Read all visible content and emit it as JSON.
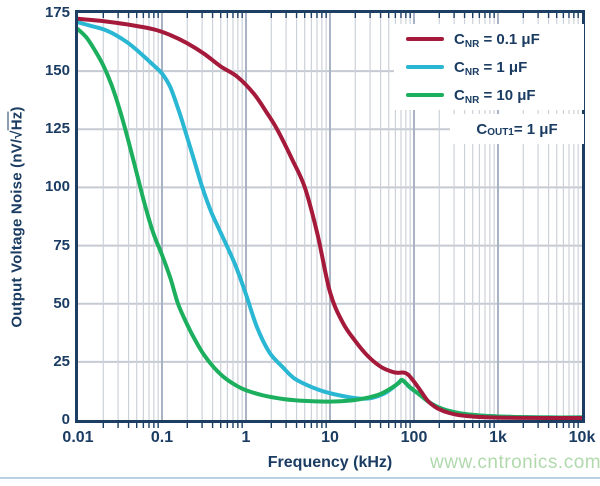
{
  "figure": {
    "watermark": "www.cntronics.com",
    "colors": {
      "axis_frame": "#1c3e63",
      "text": "#1b3c62",
      "grid_major": "#aab3c3",
      "grid_minor": "#cdd1d9",
      "grid_horizontal": "#c6cad3",
      "background": "#ffffff",
      "watermark": "#b1d9ad",
      "bottom_rule": "#b6d0e6"
    }
  },
  "chart_data": {
    "type": "line",
    "title": "",
    "grid": true,
    "legend_position": "top-right",
    "x_axis": {
      "label": "Frequency (kHz)",
      "scale": "log",
      "min_log": -2,
      "max_log": 4,
      "tick_labels": [
        "0.01",
        "0.1",
        "1",
        "10",
        "100",
        "1k",
        "10k"
      ]
    },
    "y_axis": {
      "label_pre": "Output Voltage Noise (nV/√",
      "label_overline": "Hz",
      "label_post": ")",
      "min": 0,
      "max": 175,
      "tick_step": 25,
      "tick_labels": [
        "0",
        "25",
        "50",
        "75",
        "100",
        "125",
        "150",
        "175"
      ]
    },
    "annotation": {
      "pre": "C",
      "sub": "OUT1",
      "rest": " = 1 μF"
    },
    "series": [
      {
        "id": "cnr-0.1uf",
        "label_pre": "C",
        "label_sub": "NR",
        "label_rest": " = 0.1 μF",
        "color": "#a5193a",
        "points_log_kHz_nV": [
          [
            -2,
            172.5
          ],
          [
            -1.7,
            171.5
          ],
          [
            -1.4,
            170
          ],
          [
            -1.1,
            168
          ],
          [
            -0.9,
            165.5
          ],
          [
            -0.7,
            162
          ],
          [
            -0.5,
            157.5
          ],
          [
            -0.3,
            152
          ],
          [
            -0.1,
            147.5
          ],
          [
            0.1,
            140
          ],
          [
            0.25,
            132
          ],
          [
            0.37,
            125
          ],
          [
            0.55,
            112
          ],
          [
            0.7,
            100
          ],
          [
            0.85,
            80
          ],
          [
            1.0,
            55
          ],
          [
            1.15,
            42
          ],
          [
            1.3,
            34
          ],
          [
            1.45,
            27.5
          ],
          [
            1.6,
            23
          ],
          [
            1.72,
            21
          ],
          [
            1.8,
            20.3
          ],
          [
            1.88,
            20.4
          ],
          [
            1.93,
            19.5
          ],
          [
            2.0,
            16.5
          ],
          [
            2.08,
            12.5
          ],
          [
            2.17,
            8
          ],
          [
            2.28,
            5
          ],
          [
            2.42,
            3
          ],
          [
            2.6,
            1.8
          ],
          [
            2.9,
            1.1
          ],
          [
            3.3,
            0.9
          ],
          [
            4,
            0.85
          ]
        ]
      },
      {
        "id": "cnr-1uf",
        "label_pre": "C",
        "label_sub": "NR",
        "label_rest": " = 1 μF",
        "color": "#29b7d3",
        "points_log_kHz_nV": [
          [
            -2,
            171
          ],
          [
            -1.85,
            169.5
          ],
          [
            -1.7,
            168
          ],
          [
            -1.55,
            165.5
          ],
          [
            -1.4,
            162
          ],
          [
            -1.25,
            157.5
          ],
          [
            -1.1,
            152.5
          ],
          [
            -1,
            149
          ],
          [
            -0.9,
            143
          ],
          [
            -0.8,
            133
          ],
          [
            -0.73,
            125
          ],
          [
            -0.62,
            112
          ],
          [
            -0.52,
            100
          ],
          [
            -0.42,
            90
          ],
          [
            -0.32,
            82
          ],
          [
            -0.23,
            75
          ],
          [
            -0.12,
            66
          ],
          [
            0,
            54
          ],
          [
            0.13,
            40
          ],
          [
            0.28,
            29
          ],
          [
            0.43,
            23
          ],
          [
            0.57,
            18
          ],
          [
            0.76,
            14.5
          ],
          [
            0.95,
            12
          ],
          [
            1.15,
            10.3
          ],
          [
            1.35,
            9.2
          ],
          [
            1.5,
            9.5
          ],
          [
            1.65,
            11.5
          ],
          [
            1.78,
            14.8
          ],
          [
            1.86,
            17
          ],
          [
            1.95,
            14
          ],
          [
            2.07,
            10.8
          ],
          [
            2.2,
            7.2
          ],
          [
            2.35,
            4.6
          ],
          [
            2.55,
            2.9
          ],
          [
            2.8,
            1.9
          ],
          [
            3.2,
            1.3
          ],
          [
            3.6,
            1.1
          ],
          [
            4,
            1.1
          ]
        ]
      },
      {
        "id": "cnr-10uf",
        "label_pre": "C",
        "label_sub": "NR",
        "label_rest": " = 10 μF",
        "color": "#1caf5e",
        "points_log_kHz_nV": [
          [
            -2,
            168
          ],
          [
            -1.9,
            164.5
          ],
          [
            -1.8,
            159
          ],
          [
            -1.7,
            152.5
          ],
          [
            -1.6,
            144
          ],
          [
            -1.5,
            133
          ],
          [
            -1.4,
            120
          ],
          [
            -1.3,
            106
          ],
          [
            -1.2,
            92
          ],
          [
            -1.1,
            80
          ],
          [
            -1,
            71
          ],
          [
            -0.9,
            61
          ],
          [
            -0.81,
            50
          ],
          [
            -0.7,
            41
          ],
          [
            -0.6,
            34
          ],
          [
            -0.5,
            28
          ],
          [
            -0.38,
            22.5
          ],
          [
            -0.25,
            18
          ],
          [
            -0.1,
            14.5
          ],
          [
            0,
            12.8
          ],
          [
            0.2,
            10.6
          ],
          [
            0.45,
            9
          ],
          [
            0.7,
            8.2
          ],
          [
            1,
            7.9
          ],
          [
            1.25,
            8.4
          ],
          [
            1.45,
            9.6
          ],
          [
            1.6,
            11.2
          ],
          [
            1.72,
            13.5
          ],
          [
            1.82,
            16
          ],
          [
            1.86,
            17.2
          ],
          [
            1.95,
            14.2
          ],
          [
            2.07,
            10.8
          ],
          [
            2.2,
            7.2
          ],
          [
            2.35,
            4.6
          ],
          [
            2.55,
            2.9
          ],
          [
            2.8,
            1.9
          ],
          [
            3.2,
            1.3
          ],
          [
            3.6,
            1.1
          ],
          [
            4,
            1.1
          ]
        ]
      }
    ]
  }
}
